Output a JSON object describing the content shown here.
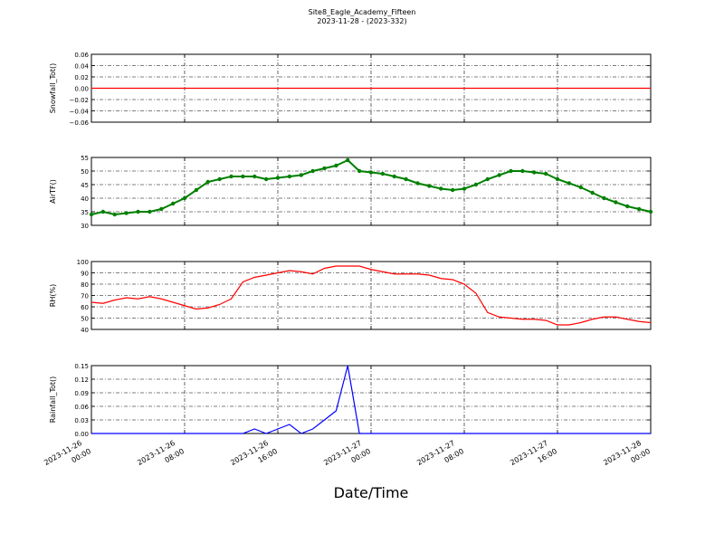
{
  "chart_data": [
    {
      "type": "line",
      "title": "Site8_Eagle_Academy_Fifteen",
      "subtitle": "2023-11-28 - (2023-332)",
      "x_label": "Date/Time",
      "y_label": "Snowfall_Tot()",
      "x": [
        "2023-11-26 00:00",
        "2023-11-26 01:00",
        "2023-11-26 02:00",
        "2023-11-26 03:00",
        "2023-11-26 04:00",
        "2023-11-26 05:00",
        "2023-11-26 06:00",
        "2023-11-26 07:00",
        "2023-11-26 08:00",
        "2023-11-26 09:00",
        "2023-11-26 10:00",
        "2023-11-26 11:00",
        "2023-11-26 12:00",
        "2023-11-26 13:00",
        "2023-11-26 14:00",
        "2023-11-26 15:00",
        "2023-11-26 16:00",
        "2023-11-26 17:00",
        "2023-11-26 18:00",
        "2023-11-26 19:00",
        "2023-11-26 20:00",
        "2023-11-26 21:00",
        "2023-11-26 22:00",
        "2023-11-26 23:00",
        "2023-11-27 00:00",
        "2023-11-27 01:00",
        "2023-11-27 02:00",
        "2023-11-27 03:00",
        "2023-11-27 04:00",
        "2023-11-27 05:00",
        "2023-11-27 06:00",
        "2023-11-27 07:00",
        "2023-11-27 08:00",
        "2023-11-27 09:00",
        "2023-11-27 10:00",
        "2023-11-27 11:00",
        "2023-11-27 12:00",
        "2023-11-27 13:00",
        "2023-11-27 14:00",
        "2023-11-27 15:00",
        "2023-11-27 16:00",
        "2023-11-27 17:00",
        "2023-11-27 18:00",
        "2023-11-27 19:00",
        "2023-11-27 20:00",
        "2023-11-27 21:00",
        "2023-11-27 22:00",
        "2023-11-27 23:00",
        "2023-11-28 00:00"
      ],
      "series": [
        {
          "name": "Snowfall_Tot()",
          "color": "#ff0000",
          "values": [
            0,
            0,
            0,
            0,
            0,
            0,
            0,
            0,
            0,
            0,
            0,
            0,
            0,
            0,
            0,
            0,
            0,
            0,
            0,
            0,
            0,
            0,
            0,
            0,
            0,
            0,
            0,
            0,
            0,
            0,
            0,
            0,
            0,
            0,
            0,
            0,
            0,
            0,
            0,
            0,
            0,
            0,
            0,
            0,
            0,
            0,
            0,
            0,
            0
          ]
        }
      ],
      "xlim": [
        "2023-11-26 00:00",
        "2023-11-28 00:00"
      ],
      "xticks": [
        "2023-11-26 00:00",
        "2023-11-26 08:00",
        "2023-11-26 16:00",
        "2023-11-27 00:00",
        "2023-11-27 08:00",
        "2023-11-27 16:00",
        "2023-11-28 00:00"
      ],
      "ylim": [
        -0.06,
        0.06
      ],
      "yticks": [
        {
          "value": -0.06,
          "label": "−0.06"
        },
        {
          "value": -0.04,
          "label": "−0.04"
        },
        {
          "value": -0.02,
          "label": "−0.02"
        },
        {
          "value": 0,
          "label": "0.00"
        },
        {
          "value": 0.02,
          "label": "0.02"
        },
        {
          "value": 0.04,
          "label": "0.04"
        },
        {
          "value": 0.06,
          "label": "0.06"
        }
      ],
      "grid": true
    },
    {
      "type": "line",
      "y_label": "AirTF()",
      "x": [
        "2023-11-26 00:00",
        "2023-11-26 01:00",
        "2023-11-26 02:00",
        "2023-11-26 03:00",
        "2023-11-26 04:00",
        "2023-11-26 05:00",
        "2023-11-26 06:00",
        "2023-11-26 07:00",
        "2023-11-26 08:00",
        "2023-11-26 09:00",
        "2023-11-26 10:00",
        "2023-11-26 11:00",
        "2023-11-26 12:00",
        "2023-11-26 13:00",
        "2023-11-26 14:00",
        "2023-11-26 15:00",
        "2023-11-26 16:00",
        "2023-11-26 17:00",
        "2023-11-26 18:00",
        "2023-11-26 19:00",
        "2023-11-26 20:00",
        "2023-11-26 21:00",
        "2023-11-26 22:00",
        "2023-11-26 23:00",
        "2023-11-27 00:00",
        "2023-11-27 01:00",
        "2023-11-27 02:00",
        "2023-11-27 03:00",
        "2023-11-27 04:00",
        "2023-11-27 05:00",
        "2023-11-27 06:00",
        "2023-11-27 07:00",
        "2023-11-27 08:00",
        "2023-11-27 09:00",
        "2023-11-27 10:00",
        "2023-11-27 11:00",
        "2023-11-27 12:00",
        "2023-11-27 13:00",
        "2023-11-27 14:00",
        "2023-11-27 15:00",
        "2023-11-27 16:00",
        "2023-11-27 17:00",
        "2023-11-27 18:00",
        "2023-11-27 19:00",
        "2023-11-27 20:00",
        "2023-11-27 21:00",
        "2023-11-27 22:00",
        "2023-11-27 23:00",
        "2023-11-28 00:00"
      ],
      "series": [
        {
          "name": "AirTF()",
          "color": "#008000",
          "marker": "o",
          "values": [
            34,
            35,
            34,
            34.5,
            35,
            35,
            36,
            38,
            40,
            43,
            46,
            47,
            48,
            48,
            48,
            47,
            47.5,
            48,
            48.5,
            50,
            51,
            52,
            54,
            50,
            49.5,
            49,
            48,
            47,
            45.5,
            44.5,
            43.5,
            43,
            43.5,
            45,
            47,
            48.5,
            50,
            50,
            49.5,
            49,
            47,
            45.5,
            44,
            42,
            40,
            38.5,
            37,
            36,
            35
          ]
        }
      ],
      "xlim": [
        "2023-11-26 00:00",
        "2023-11-28 00:00"
      ],
      "xticks": [
        "2023-11-26 00:00",
        "2023-11-26 08:00",
        "2023-11-26 16:00",
        "2023-11-27 00:00",
        "2023-11-27 08:00",
        "2023-11-27 16:00",
        "2023-11-28 00:00"
      ],
      "ylim": [
        30,
        55
      ],
      "yticks": [
        30,
        35,
        40,
        45,
        50,
        55
      ],
      "grid": true
    },
    {
      "type": "line",
      "y_label": "RH(%)",
      "x": [
        "2023-11-26 00:00",
        "2023-11-26 01:00",
        "2023-11-26 02:00",
        "2023-11-26 03:00",
        "2023-11-26 04:00",
        "2023-11-26 05:00",
        "2023-11-26 06:00",
        "2023-11-26 07:00",
        "2023-11-26 08:00",
        "2023-11-26 09:00",
        "2023-11-26 10:00",
        "2023-11-26 11:00",
        "2023-11-26 12:00",
        "2023-11-26 13:00",
        "2023-11-26 14:00",
        "2023-11-26 15:00",
        "2023-11-26 16:00",
        "2023-11-26 17:00",
        "2023-11-26 18:00",
        "2023-11-26 19:00",
        "2023-11-26 20:00",
        "2023-11-26 21:00",
        "2023-11-26 22:00",
        "2023-11-26 23:00",
        "2023-11-27 00:00",
        "2023-11-27 01:00",
        "2023-11-27 02:00",
        "2023-11-27 03:00",
        "2023-11-27 04:00",
        "2023-11-27 05:00",
        "2023-11-27 06:00",
        "2023-11-27 07:00",
        "2023-11-27 08:00",
        "2023-11-27 09:00",
        "2023-11-27 10:00",
        "2023-11-27 11:00",
        "2023-11-27 12:00",
        "2023-11-27 13:00",
        "2023-11-27 14:00",
        "2023-11-27 15:00",
        "2023-11-27 16:00",
        "2023-11-27 17:00",
        "2023-11-27 18:00",
        "2023-11-27 19:00",
        "2023-11-27 20:00",
        "2023-11-27 21:00",
        "2023-11-27 22:00",
        "2023-11-27 23:00",
        "2023-11-28 00:00"
      ],
      "series": [
        {
          "name": "RH(%)",
          "color": "#ff0000",
          "values": [
            64,
            63,
            66,
            68,
            67,
            69,
            67,
            64,
            61,
            58,
            59,
            62,
            67,
            82,
            86,
            88,
            90,
            92,
            91,
            89,
            94,
            96,
            96,
            96,
            93,
            91,
            89,
            89,
            89,
            88,
            85,
            84,
            80,
            72,
            55,
            51,
            50,
            49,
            49,
            48,
            44,
            44,
            46,
            49,
            51,
            51,
            49,
            47,
            46
          ]
        }
      ],
      "xlim": [
        "2023-11-26 00:00",
        "2023-11-28 00:00"
      ],
      "xticks": [
        "2023-11-26 00:00",
        "2023-11-26 08:00",
        "2023-11-26 16:00",
        "2023-11-27 00:00",
        "2023-11-27 08:00",
        "2023-11-27 16:00",
        "2023-11-28 00:00"
      ],
      "ylim": [
        40,
        100
      ],
      "yticks": [
        40,
        50,
        60,
        70,
        80,
        90,
        100
      ],
      "grid": true
    },
    {
      "type": "line",
      "y_label": "Rainfall_Tot()",
      "x": [
        "2023-11-26 00:00",
        "2023-11-26 01:00",
        "2023-11-26 02:00",
        "2023-11-26 03:00",
        "2023-11-26 04:00",
        "2023-11-26 05:00",
        "2023-11-26 06:00",
        "2023-11-26 07:00",
        "2023-11-26 08:00",
        "2023-11-26 09:00",
        "2023-11-26 10:00",
        "2023-11-26 11:00",
        "2023-11-26 12:00",
        "2023-11-26 13:00",
        "2023-11-26 14:00",
        "2023-11-26 15:00",
        "2023-11-26 16:00",
        "2023-11-26 17:00",
        "2023-11-26 18:00",
        "2023-11-26 19:00",
        "2023-11-26 20:00",
        "2023-11-26 21:00",
        "2023-11-26 22:00",
        "2023-11-26 23:00",
        "2023-11-27 00:00",
        "2023-11-27 01:00",
        "2023-11-27 02:00",
        "2023-11-27 03:00",
        "2023-11-27 04:00",
        "2023-11-27 05:00",
        "2023-11-27 06:00",
        "2023-11-27 07:00",
        "2023-11-27 08:00",
        "2023-11-27 09:00",
        "2023-11-27 10:00",
        "2023-11-27 11:00",
        "2023-11-27 12:00",
        "2023-11-27 13:00",
        "2023-11-27 14:00",
        "2023-11-27 15:00",
        "2023-11-27 16:00",
        "2023-11-27 17:00",
        "2023-11-27 18:00",
        "2023-11-27 19:00",
        "2023-11-27 20:00",
        "2023-11-27 21:00",
        "2023-11-27 22:00",
        "2023-11-27 23:00",
        "2023-11-28 00:00"
      ],
      "series": [
        {
          "name": "Rainfall_Tot()",
          "color": "#0000ff",
          "values": [
            0,
            0,
            0,
            0,
            0,
            0,
            0,
            0,
            0,
            0,
            0,
            0,
            0,
            0,
            0.01,
            0,
            0.01,
            0.02,
            0,
            0.01,
            0.03,
            0.05,
            0.15,
            0,
            0,
            0,
            0,
            0,
            0,
            0,
            0,
            0,
            0,
            0,
            0,
            0,
            0,
            0,
            0,
            0,
            0,
            0,
            0,
            0,
            0,
            0,
            0,
            0,
            0
          ]
        }
      ],
      "xlim": [
        "2023-11-26 00:00",
        "2023-11-28 00:00"
      ],
      "xticks": [
        {
          "value": "2023-11-26 00:00",
          "label": [
            "2023-11-26",
            "00:00"
          ]
        },
        {
          "value": "2023-11-26 08:00",
          "label": [
            "2023-11-26",
            "08:00"
          ]
        },
        {
          "value": "2023-11-26 16:00",
          "label": [
            "2023-11-26",
            "16:00"
          ]
        },
        {
          "value": "2023-11-27 00:00",
          "label": [
            "2023-11-27",
            "00:00"
          ]
        },
        {
          "value": "2023-11-27 08:00",
          "label": [
            "2023-11-27",
            "08:00"
          ]
        },
        {
          "value": "2023-11-27 16:00",
          "label": [
            "2023-11-27",
            "16:00"
          ]
        },
        {
          "value": "2023-11-28 00:00",
          "label": [
            "2023-11-28",
            "00:00"
          ]
        }
      ],
      "ylim": [
        0,
        0.15
      ],
      "yticks": [
        {
          "value": 0,
          "label": "0.00"
        },
        {
          "value": 0.03,
          "label": "0.03"
        },
        {
          "value": 0.06,
          "label": "0.06"
        },
        {
          "value": 0.09,
          "label": "0.09"
        },
        {
          "value": 0.12,
          "label": "0.12"
        },
        {
          "value": 0.15,
          "label": "0.15"
        }
      ],
      "grid": true
    }
  ]
}
